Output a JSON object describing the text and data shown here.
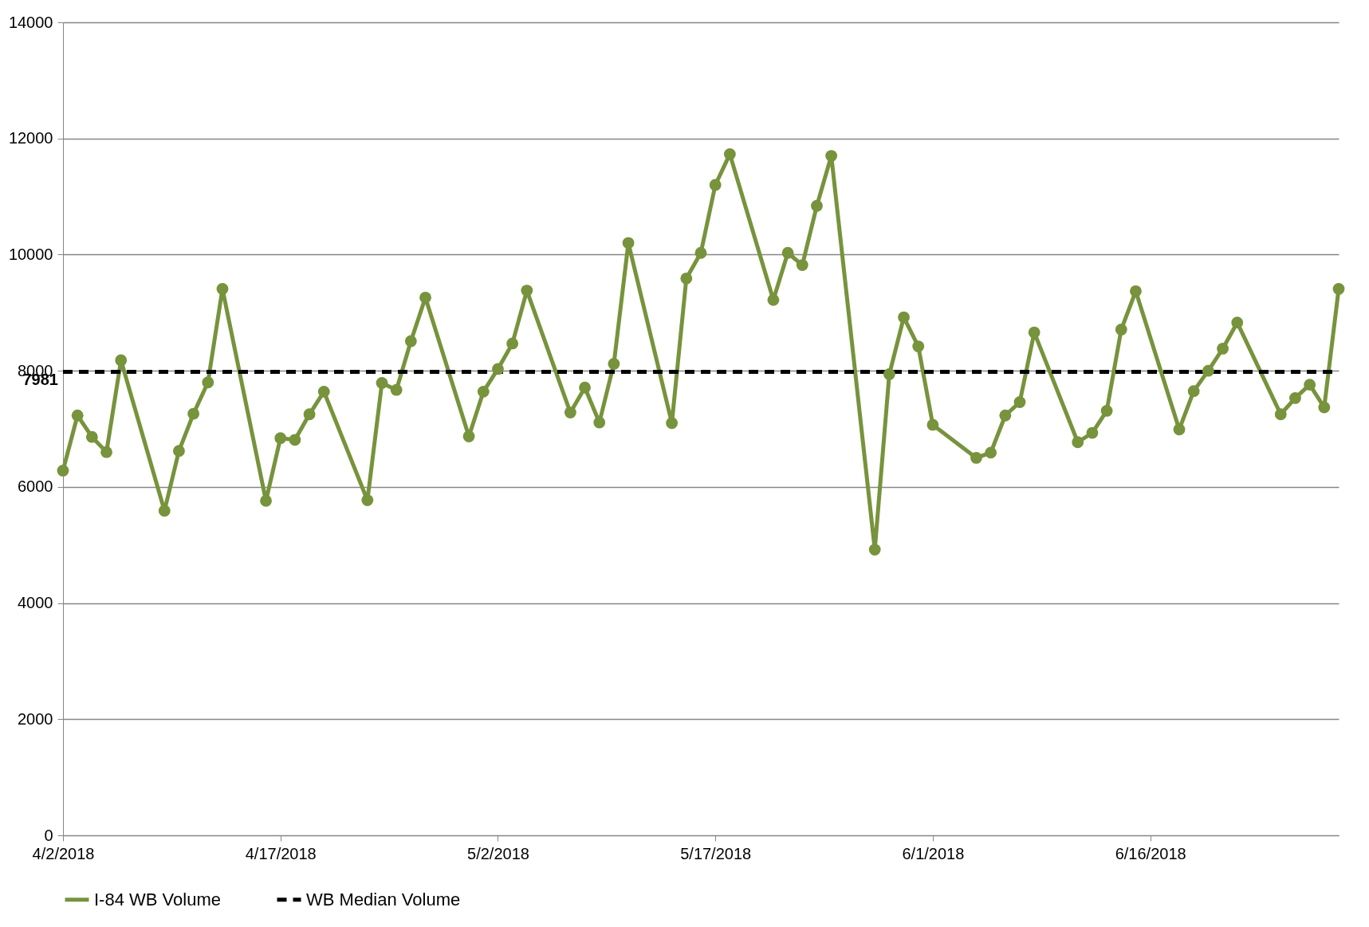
{
  "chart_data": {
    "type": "line",
    "x": [
      "2018-04-02",
      "2018-04-03",
      "2018-04-04",
      "2018-04-05",
      "2018-04-06",
      "2018-04-09",
      "2018-04-10",
      "2018-04-11",
      "2018-04-12",
      "2018-04-13",
      "2018-04-16",
      "2018-04-17",
      "2018-04-18",
      "2018-04-19",
      "2018-04-20",
      "2018-04-23",
      "2018-04-24",
      "2018-04-25",
      "2018-04-26",
      "2018-04-27",
      "2018-04-30",
      "2018-05-01",
      "2018-05-02",
      "2018-05-03",
      "2018-05-04",
      "2018-05-07",
      "2018-05-08",
      "2018-05-09",
      "2018-05-10",
      "2018-05-11",
      "2018-05-14",
      "2018-05-15",
      "2018-05-16",
      "2018-05-17",
      "2018-05-18",
      "2018-05-21",
      "2018-05-22",
      "2018-05-23",
      "2018-05-24",
      "2018-05-25",
      "2018-05-28",
      "2018-05-29",
      "2018-05-30",
      "2018-05-31",
      "2018-06-01",
      "2018-06-04",
      "2018-06-05",
      "2018-06-06",
      "2018-06-07",
      "2018-06-08",
      "2018-06-11",
      "2018-06-12",
      "2018-06-13",
      "2018-06-14",
      "2018-06-15",
      "2018-06-18",
      "2018-06-19",
      "2018-06-20",
      "2018-06-21",
      "2018-06-22",
      "2018-06-25",
      "2018-06-26",
      "2018-06-27",
      "2018-06-28",
      "2018-06-29"
    ],
    "series": [
      {
        "name": "I-84 WB Volume",
        "color": "#77933c",
        "marker": "circle",
        "line_style": "solid",
        "values": [
          6280,
          7230,
          6860,
          6600,
          8180,
          5590,
          6620,
          7260,
          7800,
          9410,
          5760,
          6840,
          6810,
          7250,
          7640,
          5770,
          7790,
          7670,
          8510,
          9260,
          6870,
          7640,
          8030,
          8470,
          9380,
          7280,
          7710,
          7110,
          8120,
          10200,
          7100,
          9590,
          10030,
          11200,
          11730,
          9220,
          10030,
          9820,
          10840,
          11700,
          4920,
          7940,
          8920,
          8420,
          7070,
          6500,
          6590,
          7230,
          7460,
          8660,
          6770,
          6930,
          7310,
          8710,
          9370,
          6990,
          7650,
          8000,
          8380,
          8830,
          7250,
          7530,
          7760,
          7370,
          9410
        ]
      },
      {
        "name": "WB Median Volume",
        "color": "#000000",
        "marker": "none",
        "line_style": "dashed",
        "x": [
          "2018-04-02",
          "2018-06-29"
        ],
        "values": [
          7981,
          7981
        ],
        "value_labels": [
          "7981",
          null
        ]
      }
    ],
    "xlim": [
      "2018-04-02",
      "2018-06-29"
    ],
    "xticks": [
      {
        "value": "2018-04-02",
        "label": "4/2/2018"
      },
      {
        "value": "2018-04-17",
        "label": "4/17/2018"
      },
      {
        "value": "2018-05-02",
        "label": "5/2/2018"
      },
      {
        "value": "2018-05-17",
        "label": "5/17/2018"
      },
      {
        "value": "2018-06-01",
        "label": "6/1/2018"
      },
      {
        "value": "2018-06-16",
        "label": "6/16/2018"
      }
    ],
    "ylim": [
      0,
      14000
    ],
    "yticks": [
      0,
      2000,
      4000,
      6000,
      8000,
      10000,
      12000,
      14000
    ],
    "grid": "y",
    "legend": "bottom"
  }
}
